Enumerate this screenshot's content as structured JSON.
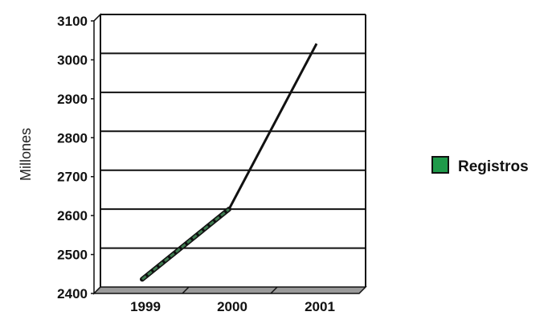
{
  "chart_data": {
    "type": "line",
    "title": "",
    "xlabel": "",
    "ylabel": "Millones",
    "categories": [
      "1999",
      "2000",
      "2001"
    ],
    "series": [
      {
        "name": "Registros",
        "values": [
          2420,
          2600,
          3025
        ]
      }
    ],
    "ylim": [
      2400,
      3100
    ],
    "yticks": [
      2400,
      2500,
      2600,
      2700,
      2800,
      2900,
      3000,
      3100
    ],
    "grid": true,
    "legend_position": "right",
    "colors": {
      "legend_fill": "#1f9a4a",
      "line": "#111111",
      "line_lowsegment_fill": "#3d7a4f",
      "floor": "#9a9a9a"
    }
  }
}
